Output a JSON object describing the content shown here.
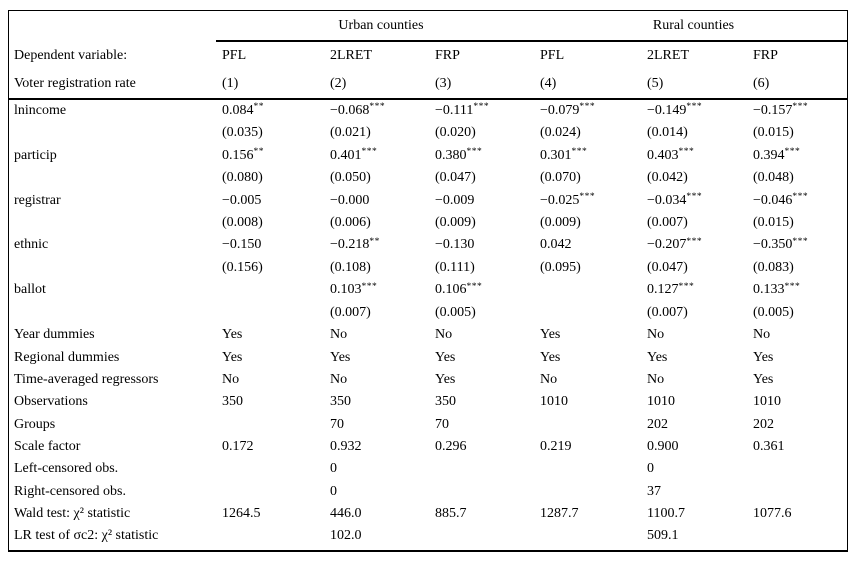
{
  "table": {
    "group_headers": [
      {
        "label": "Urban counties"
      },
      {
        "label": "Rural counties"
      }
    ],
    "header_rows": [
      {
        "label": "Dependent variable:",
        "cells": [
          "PFL",
          "2LRET",
          "FRP",
          "PFL",
          "2LRET",
          "FRP"
        ]
      },
      {
        "label": "Voter registration rate",
        "cells": [
          "(1)",
          "(2)",
          "(3)",
          "(4)",
          "(5)",
          "(6)"
        ]
      }
    ],
    "coef_rows": [
      {
        "label": "lnincome",
        "cells": [
          {
            "coef": "0.084",
            "stars": "**",
            "se": "(0.035)"
          },
          {
            "coef": "−0.068",
            "stars": "***",
            "se": "(0.021)"
          },
          {
            "coef": "−0.111",
            "stars": "***",
            "se": "(0.020)"
          },
          {
            "coef": "−0.079",
            "stars": "***",
            "se": "(0.024)"
          },
          {
            "coef": "−0.149",
            "stars": "***",
            "se": "(0.014)"
          },
          {
            "coef": "−0.157",
            "stars": "***",
            "se": "(0.015)"
          }
        ]
      },
      {
        "label": "particip",
        "cells": [
          {
            "coef": "0.156",
            "stars": "**",
            "se": "(0.080)"
          },
          {
            "coef": "0.401",
            "stars": "***",
            "se": "(0.050)"
          },
          {
            "coef": "0.380",
            "stars": "***",
            "se": "(0.047)"
          },
          {
            "coef": "0.301",
            "stars": "***",
            "se": "(0.070)"
          },
          {
            "coef": "0.403",
            "stars": "***",
            "se": "(0.042)"
          },
          {
            "coef": "0.394",
            "stars": "***",
            "se": "(0.048)"
          }
        ]
      },
      {
        "label": "registrar",
        "cells": [
          {
            "coef": "−0.005",
            "stars": "",
            "se": "(0.008)"
          },
          {
            "coef": "−0.000",
            "stars": "",
            "se": "(0.006)"
          },
          {
            "coef": "−0.009",
            "stars": "",
            "se": "(0.009)"
          },
          {
            "coef": "−0.025",
            "stars": "***",
            "se": "(0.009)"
          },
          {
            "coef": "−0.034",
            "stars": "***",
            "se": "(0.007)"
          },
          {
            "coef": "−0.046",
            "stars": "***",
            "se": "(0.015)"
          }
        ]
      },
      {
        "label": "ethnic",
        "cells": [
          {
            "coef": "−0.150",
            "stars": "",
            "se": "(0.156)"
          },
          {
            "coef": "−0.218",
            "stars": "**",
            "se": "(0.108)"
          },
          {
            "coef": "−0.130",
            "stars": "",
            "se": "(0.111)"
          },
          {
            "coef": "0.042",
            "stars": "",
            "se": "(0.095)"
          },
          {
            "coef": "−0.207",
            "stars": "***",
            "se": "(0.047)"
          },
          {
            "coef": "−0.350",
            "stars": "***",
            "se": "(0.083)"
          }
        ]
      },
      {
        "label": "ballot",
        "cells": [
          {
            "coef": "",
            "stars": "",
            "se": ""
          },
          {
            "coef": "0.103",
            "stars": "***",
            "se": "(0.007)"
          },
          {
            "coef": "0.106",
            "stars": "***",
            "se": "(0.005)"
          },
          {
            "coef": "",
            "stars": "",
            "se": ""
          },
          {
            "coef": "0.127",
            "stars": "***",
            "se": "(0.007)"
          },
          {
            "coef": "0.133",
            "stars": "***",
            "se": "(0.005)"
          }
        ]
      }
    ],
    "info_rows": [
      {
        "label": "Year dummies",
        "values": [
          "Yes",
          "No",
          "No",
          "Yes",
          "No",
          "No"
        ]
      },
      {
        "label": "Regional dummies",
        "values": [
          "Yes",
          "Yes",
          "Yes",
          "Yes",
          "Yes",
          "Yes"
        ]
      },
      {
        "label": "Time-averaged regressors",
        "values": [
          "No",
          "No",
          "Yes",
          "No",
          "No",
          "Yes"
        ]
      },
      {
        "label": "Observations",
        "values": [
          "350",
          "350",
          "350",
          "1010",
          "1010",
          "1010"
        ]
      },
      {
        "label": "Groups",
        "values": [
          "",
          "70",
          "70",
          "",
          "202",
          "202"
        ]
      },
      {
        "label": "Scale factor",
        "values": [
          "0.172",
          "0.932",
          "0.296",
          "0.219",
          "0.900",
          "0.361"
        ]
      },
      {
        "label": "Left-censored obs.",
        "values": [
          "",
          "0",
          "",
          "",
          "0",
          ""
        ]
      },
      {
        "label": "Right-censored obs.",
        "values": [
          "",
          "0",
          "",
          "",
          "37",
          ""
        ]
      },
      {
        "label": "Wald test: χ² statistic",
        "values": [
          "1264.5",
          "446.0",
          "885.7",
          "1287.7",
          "1100.7",
          "1077.6"
        ]
      },
      {
        "label": "LR test of σc2: χ² statistic",
        "values": [
          "",
          "102.0",
          "",
          "",
          "509.1",
          ""
        ]
      }
    ]
  }
}
